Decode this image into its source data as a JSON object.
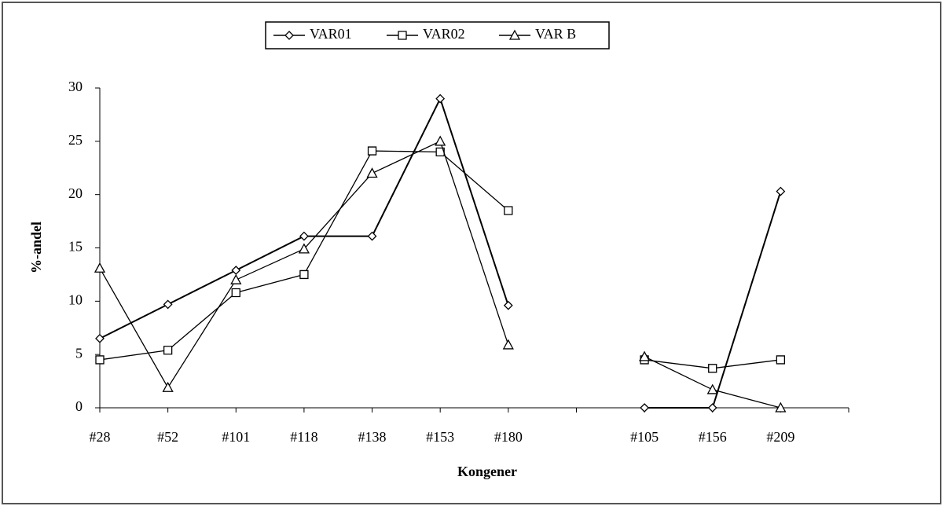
{
  "chart_data": {
    "type": "line",
    "x_label": "Kongener",
    "y_label": "%-andel",
    "categories": [
      "#28",
      "#52",
      "#101",
      "#118",
      "#138",
      "#153",
      "#180",
      null,
      "#105",
      "#156",
      "#209",
      null
    ],
    "series": [
      {
        "name": "VAR01",
        "color": "#000000",
        "marker": "diamond",
        "values": [
          6.5,
          9.7,
          12.9,
          16.1,
          16.1,
          29,
          9.6,
          null,
          0,
          0,
          20.3,
          null
        ]
      },
      {
        "name": "VAR02",
        "color": "#000000",
        "marker": "square",
        "values": [
          4.5,
          5.4,
          10.8,
          12.5,
          24.1,
          24,
          18.5,
          null,
          4.5,
          3.7,
          4.5,
          null
        ]
      },
      {
        "name": "VAR B",
        "color": "#000000",
        "marker": "triangle",
        "values": [
          13.1,
          1.9,
          12,
          14.9,
          22,
          25,
          5.9,
          null,
          4.8,
          1.7,
          0,
          null
        ]
      }
    ],
    "ylim": [
      0,
      30
    ],
    "yticks": [
      0,
      5,
      10,
      15,
      20,
      25,
      30
    ],
    "grid": false,
    "legend": "top"
  }
}
